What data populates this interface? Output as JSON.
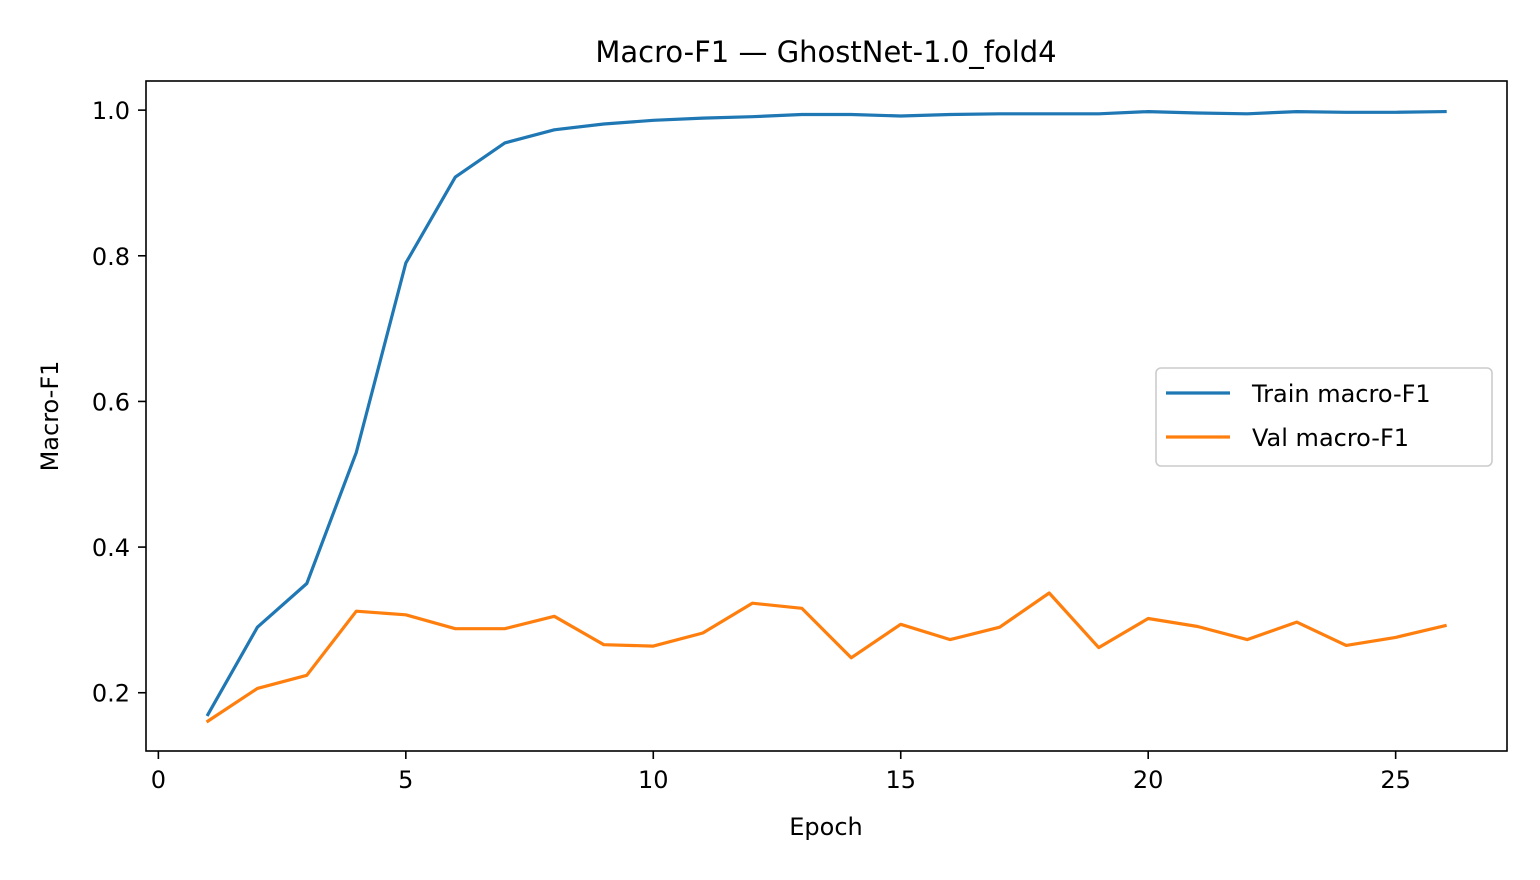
{
  "chart_data": {
    "type": "line",
    "title": "Macro-F1 — GhostNet-1.0_fold4",
    "xlabel": "Epoch",
    "ylabel": "Macro-F1",
    "xlim": [
      -0.25,
      27.25
    ],
    "ylim": [
      0.12,
      1.04
    ],
    "xticks": [
      0,
      5,
      10,
      15,
      20,
      25
    ],
    "yticks": [
      0.2,
      0.4,
      0.6,
      0.8,
      1.0
    ],
    "xtick_labels": [
      "0",
      "5",
      "10",
      "15",
      "20",
      "25"
    ],
    "ytick_labels": [
      "0.2",
      "0.4",
      "0.6",
      "0.8",
      "1.0"
    ],
    "grid": false,
    "legend_position": "center-right",
    "x": [
      1,
      2,
      3,
      4,
      5,
      6,
      7,
      8,
      9,
      10,
      11,
      12,
      13,
      14,
      15,
      16,
      17,
      18,
      19,
      20,
      21,
      22,
      23,
      24,
      25,
      26
    ],
    "series": [
      {
        "name": "Train macro-F1",
        "color": "#1f77b4",
        "values": [
          0.17,
          0.29,
          0.35,
          0.53,
          0.79,
          0.908,
          0.955,
          0.973,
          0.981,
          0.986,
          0.989,
          0.991,
          0.994,
          0.994,
          0.992,
          0.994,
          0.995,
          0.995,
          0.995,
          0.998,
          0.996,
          0.995,
          0.998,
          0.997,
          0.997,
          0.998
        ]
      },
      {
        "name": "Val macro-F1",
        "color": "#ff7f0e",
        "values": [
          0.161,
          0.206,
          0.224,
          0.312,
          0.307,
          0.288,
          0.288,
          0.305,
          0.266,
          0.264,
          0.282,
          0.323,
          0.316,
          0.248,
          0.294,
          0.273,
          0.29,
          0.337,
          0.262,
          0.302,
          0.291,
          0.273,
          0.297,
          0.265,
          0.276,
          0.292
        ]
      }
    ]
  }
}
